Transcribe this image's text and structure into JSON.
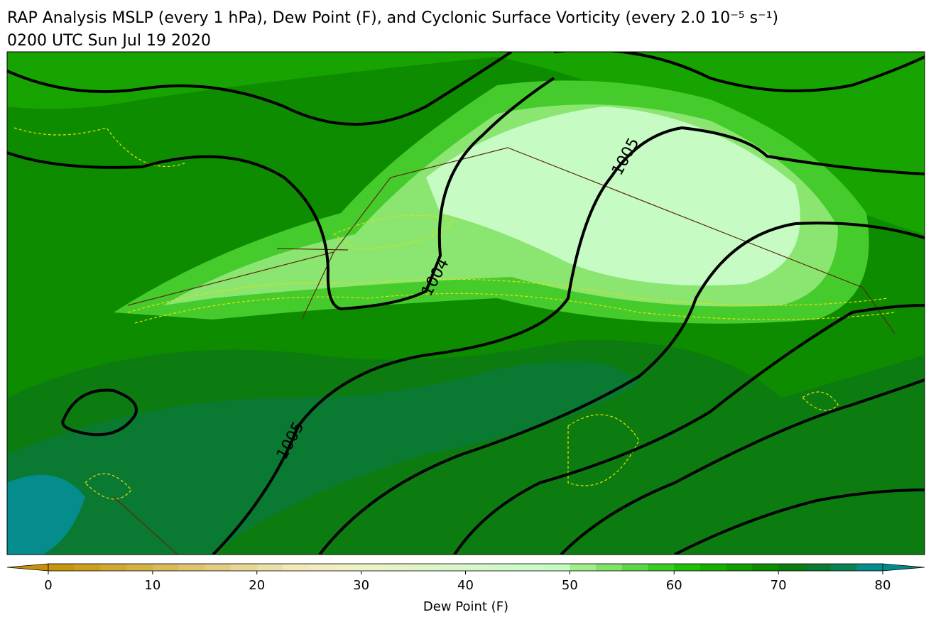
{
  "header": {
    "title": "RAP Analysis MSLP (every 1 hPa), Dew Point (F), and Cyclonic Surface Vorticity (every 2.0 10⁻⁵ s⁻¹)",
    "subtitle": "0200 UTC Sun Jul 19 2020"
  },
  "isobar_labels": [
    1005,
    1004,
    1005
  ],
  "colorbar": {
    "label": "Dew Point (F)",
    "xlim": [
      0,
      80
    ],
    "xticks": [
      0,
      10,
      20,
      30,
      40,
      50,
      60,
      70,
      80
    ],
    "under_color": "#c8900a",
    "over_color": "#008b8b",
    "colors": [
      "#c8960a",
      "#cc9f1e",
      "#d1a832",
      "#d5b145",
      "#dabb59",
      "#dfc46d",
      "#e3cd81",
      "#e8d694",
      "#ecdfa8",
      "#f5e8b8",
      "#f3ecbf",
      "#eff0c4",
      "#ebf2c6",
      "#e5f3c7",
      "#dff5c8",
      "#d9f6c8",
      "#d4f8c8",
      "#cffac8",
      "#cbfbc6",
      "#c6fcc4",
      "#a0ee8a",
      "#7fe367",
      "#5ed746",
      "#3ccb26",
      "#1ec00b",
      "#17b000",
      "#129e00",
      "#0e8c00",
      "#0c7c10",
      "#0a7a32",
      "#088250",
      "#058c8c"
    ]
  }
}
